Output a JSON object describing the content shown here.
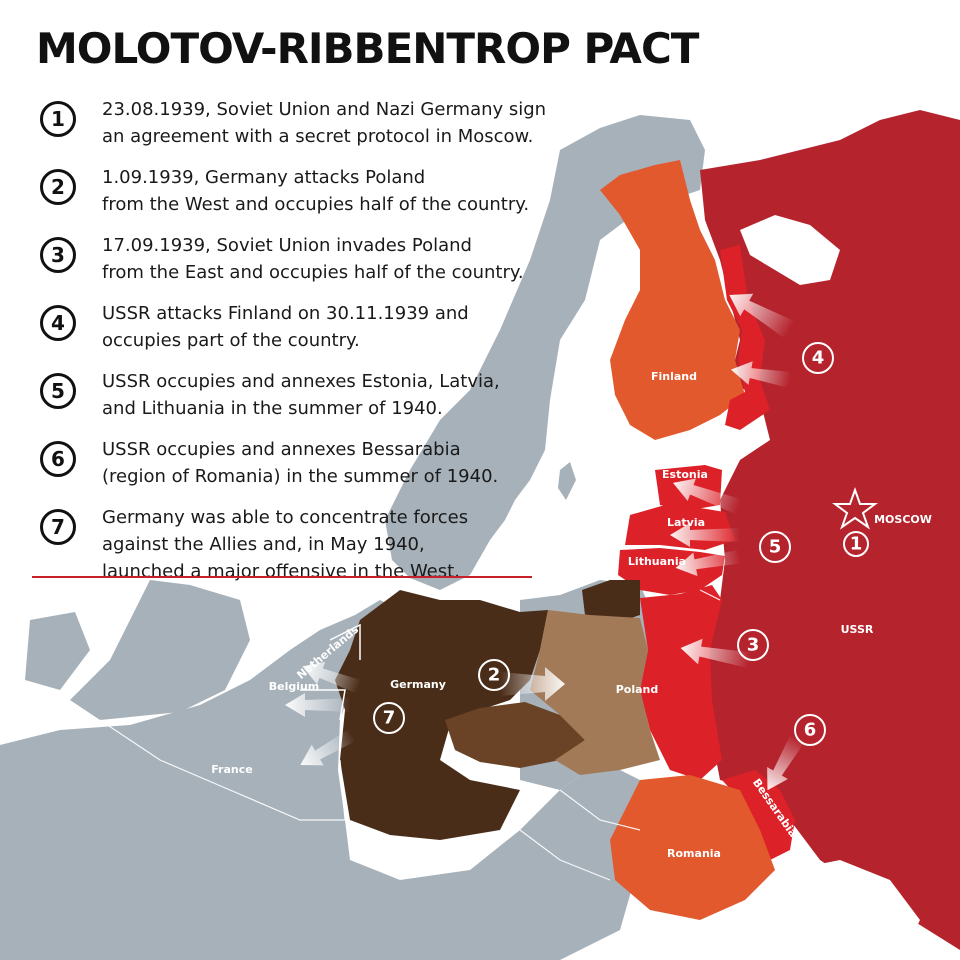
{
  "title": "MOLOTOV-RIBBENTROP PACT",
  "events": [
    {
      "number": "1",
      "text": "23.08.1939, Soviet Union and Nazi Germany sign\nan agreement with a secret protocol in Moscow."
    },
    {
      "number": "2",
      "text": "1.09.1939, Germany attacks Poland\nfrom the West and occupies half of the country."
    },
    {
      "number": "3",
      "text": "17.09.1939, Soviet Union invades Poland\nfrom the East and occupies half of the country."
    },
    {
      "number": "4",
      "text": "USSR attacks Finland on 30.11.1939 and\noccupies part of the country."
    },
    {
      "number": "5",
      "text": "USSR occupies and annexes Estonia, Latvia,\nand Lithuania in the summer of 1940."
    },
    {
      "number": "6",
      "text": "USSR occupies and annexes Bessarabia\n(region of Romania) in the summer of 1940."
    },
    {
      "number": "7",
      "text": "Germany was able to concentrate forces\nagainst the Allies and, in May 1940,\nlaunched a major offensive in the West."
    }
  ],
  "map": {
    "labels": {
      "finland": "Finland",
      "estonia": "Estonia",
      "latvia": "Latvia",
      "lithuania": "Lithuania",
      "moscow": "MOSCOW",
      "ussr": "USSR",
      "netherlands": "Netherlands",
      "belgium": "Belgium",
      "germany": "Germany",
      "poland": "Poland",
      "france": "France",
      "bessarabia": "Bessarabia",
      "romania": "Romania"
    },
    "markers": {
      "m1": "1",
      "m2": "2",
      "m3": "3",
      "m4": "4",
      "m5": "5",
      "m6": "6",
      "m7": "7"
    },
    "colors": {
      "sea": "#ffffff",
      "land": "#a6b1ba",
      "ussr": "#b5232d",
      "occupied": "#dc2128",
      "finland": "#e2592e",
      "romania": "#e2592e",
      "germany": "#4a2d19",
      "poland_west": "#a37a57",
      "accent": "#c8202b"
    }
  }
}
